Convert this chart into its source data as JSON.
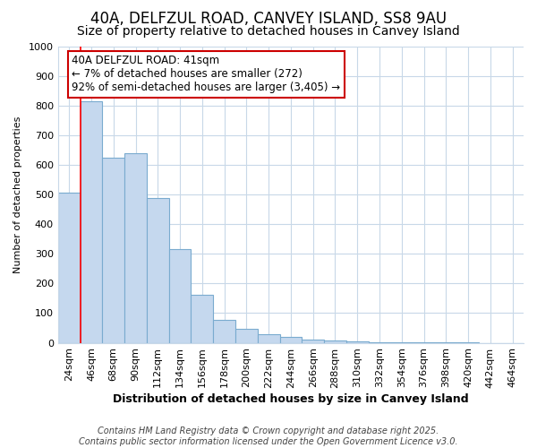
{
  "title1": "40A, DELFZUL ROAD, CANVEY ISLAND, SS8 9AU",
  "title2": "Size of property relative to detached houses in Canvey Island",
  "xlabel": "Distribution of detached houses by size in Canvey Island",
  "ylabel": "Number of detached properties",
  "categories": [
    "24sqm",
    "46sqm",
    "68sqm",
    "90sqm",
    "112sqm",
    "134sqm",
    "156sqm",
    "178sqm",
    "200sqm",
    "222sqm",
    "244sqm",
    "266sqm",
    "288sqm",
    "310sqm",
    "332sqm",
    "354sqm",
    "376sqm",
    "398sqm",
    "420sqm",
    "442sqm",
    "464sqm"
  ],
  "values": [
    505,
    813,
    625,
    640,
    487,
    315,
    162,
    78,
    47,
    30,
    20,
    10,
    8,
    5,
    3,
    2,
    1,
    1,
    1,
    0,
    0
  ],
  "bar_color": "#c5d8ee",
  "bar_edge_color": "#7aabcf",
  "background_color": "#ffffff",
  "grid_color": "#c8d8e8",
  "annotation_box_color": "#ffffff",
  "annotation_border_color": "#cc0000",
  "annotation_text_line1": "40A DELFZUL ROAD: 41sqm",
  "annotation_text_line2": "← 7% of detached houses are smaller (272)",
  "annotation_text_line3": "92% of semi-detached houses are larger (3,405) →",
  "vline_x_index": 1,
  "ylim": [
    0,
    1000
  ],
  "yticks": [
    0,
    100,
    200,
    300,
    400,
    500,
    600,
    700,
    800,
    900,
    1000
  ],
  "footer1": "Contains HM Land Registry data © Crown copyright and database right 2025.",
  "footer2": "Contains public sector information licensed under the Open Government Licence v3.0.",
  "title1_fontsize": 12,
  "title2_fontsize": 10,
  "xlabel_fontsize": 9,
  "ylabel_fontsize": 8,
  "tick_fontsize": 8,
  "annotation_fontsize": 8.5,
  "footer_fontsize": 7
}
